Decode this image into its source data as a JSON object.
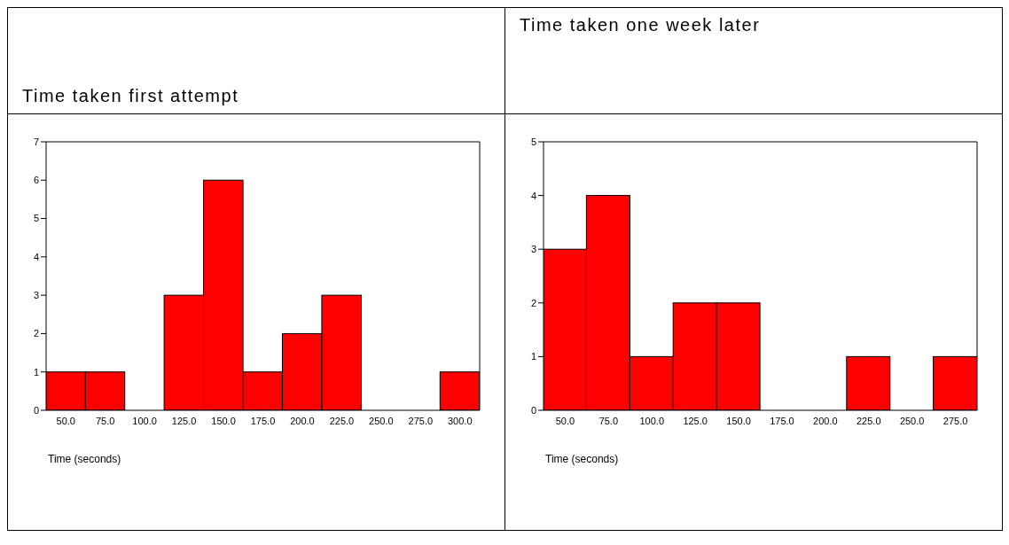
{
  "chart_data": [
    {
      "type": "histogram",
      "title": "Time taken first attempt",
      "xlabel": "Time (seconds)",
      "bins": [
        37.5,
        62.5,
        87.5,
        112.5,
        137.5,
        162.5,
        187.5,
        212.5,
        237.5,
        262.5,
        287.5,
        312.5
      ],
      "values": [
        1,
        1,
        0,
        3,
        6,
        1,
        2,
        3,
        0,
        0,
        1
      ],
      "color": "#ff0000",
      "xlim": [
        37.5,
        312.5
      ],
      "xticks": [
        {
          "value": 50,
          "label": "50.0"
        },
        {
          "value": 75,
          "label": "75.0"
        },
        {
          "value": 100,
          "label": "100.0"
        },
        {
          "value": 125,
          "label": "125.0"
        },
        {
          "value": 150,
          "label": "150.0"
        },
        {
          "value": 175,
          "label": "175.0"
        },
        {
          "value": 200,
          "label": "200.0"
        },
        {
          "value": 225,
          "label": "225.0"
        },
        {
          "value": 250,
          "label": "250.0"
        },
        {
          "value": 275,
          "label": "275.0"
        },
        {
          "value": 300,
          "label": "300.0"
        }
      ],
      "ylim": [
        0,
        7
      ],
      "yticks": [
        0,
        1,
        2,
        3,
        4,
        5,
        6,
        7
      ]
    },
    {
      "type": "histogram",
      "title": "Time taken one week later",
      "xlabel": "Time (seconds)",
      "bins": [
        37.5,
        62.5,
        87.5,
        112.5,
        137.5,
        162.5,
        187.5,
        212.5,
        237.5,
        262.5,
        287.5
      ],
      "values": [
        3,
        4,
        1,
        2,
        2,
        0,
        0,
        1,
        0,
        1
      ],
      "color": "#ff0000",
      "xlim": [
        37.5,
        287.5
      ],
      "xticks": [
        {
          "value": 50,
          "label": "50.0"
        },
        {
          "value": 75,
          "label": "75.0"
        },
        {
          "value": 100,
          "label": "100.0"
        },
        {
          "value": 125,
          "label": "125.0"
        },
        {
          "value": 150,
          "label": "150.0"
        },
        {
          "value": 175,
          "label": "175.0"
        },
        {
          "value": 200,
          "label": "200.0"
        },
        {
          "value": 225,
          "label": "225.0"
        },
        {
          "value": 250,
          "label": "250.0"
        },
        {
          "value": 275,
          "label": "275.0"
        }
      ],
      "ylim": [
        0,
        5
      ],
      "yticks": [
        0,
        1,
        2,
        3,
        4,
        5
      ]
    }
  ]
}
